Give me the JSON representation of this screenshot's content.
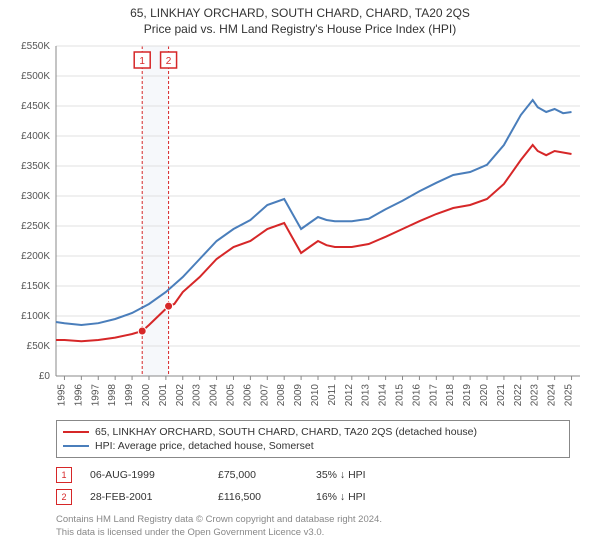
{
  "title": {
    "line1": "65, LINKHAY ORCHARD, SOUTH CHARD, CHARD, TA20 2QS",
    "line2": "Price paid vs. HM Land Registry's House Price Index (HPI)"
  },
  "chart": {
    "type": "line",
    "plot_bg": "#ffffff",
    "grid_color": "#e0e0e0",
    "axis_color": "#888888",
    "label_color": "#555555",
    "label_fontsize": 10,
    "x_years": [
      1995,
      1996,
      1997,
      1998,
      1999,
      2000,
      2001,
      2002,
      2003,
      2004,
      2005,
      2006,
      2007,
      2008,
      2009,
      2010,
      2011,
      2012,
      2013,
      2014,
      2015,
      2016,
      2017,
      2018,
      2019,
      2020,
      2021,
      2022,
      2023,
      2024,
      2025
    ],
    "xlim": [
      1994.5,
      2025.5
    ],
    "ylim": [
      0,
      550000
    ],
    "ytick_step": 50000,
    "y_format_prefix": "£",
    "y_format_suffix": "K",
    "y_format_div": 1000,
    "series": [
      {
        "id": "price_paid",
        "label": "65, LINKHAY ORCHARD, SOUTH CHARD, CHARD, TA20 2QS (detached house)",
        "color": "#d62728",
        "stroke_width": 2,
        "data": [
          [
            1994.5,
            60000
          ],
          [
            1995,
            60000
          ],
          [
            1996,
            58000
          ],
          [
            1997,
            60000
          ],
          [
            1998,
            64000
          ],
          [
            1999,
            70000
          ],
          [
            1999.6,
            75000
          ],
          [
            2000,
            85000
          ],
          [
            2001.16,
            116500
          ],
          [
            2001.5,
            120000
          ],
          [
            2002,
            140000
          ],
          [
            2003,
            165000
          ],
          [
            2004,
            195000
          ],
          [
            2005,
            215000
          ],
          [
            2006,
            225000
          ],
          [
            2007,
            245000
          ],
          [
            2008,
            255000
          ],
          [
            2008.5,
            230000
          ],
          [
            2009,
            205000
          ],
          [
            2009.5,
            215000
          ],
          [
            2010,
            225000
          ],
          [
            2010.5,
            218000
          ],
          [
            2011,
            215000
          ],
          [
            2012,
            215000
          ],
          [
            2013,
            220000
          ],
          [
            2014,
            232000
          ],
          [
            2015,
            245000
          ],
          [
            2016,
            258000
          ],
          [
            2017,
            270000
          ],
          [
            2018,
            280000
          ],
          [
            2019,
            285000
          ],
          [
            2020,
            295000
          ],
          [
            2021,
            320000
          ],
          [
            2022,
            360000
          ],
          [
            2022.7,
            385000
          ],
          [
            2023,
            375000
          ],
          [
            2023.5,
            368000
          ],
          [
            2024,
            375000
          ],
          [
            2025,
            370000
          ]
        ]
      },
      {
        "id": "hpi",
        "label": "HPI: Average price, detached house, Somerset",
        "color": "#4a7ebb",
        "stroke_width": 2,
        "data": [
          [
            1994.5,
            90000
          ],
          [
            1995,
            88000
          ],
          [
            1996,
            85000
          ],
          [
            1997,
            88000
          ],
          [
            1998,
            95000
          ],
          [
            1999,
            105000
          ],
          [
            2000,
            120000
          ],
          [
            2001,
            140000
          ],
          [
            2002,
            165000
          ],
          [
            2003,
            195000
          ],
          [
            2004,
            225000
          ],
          [
            2005,
            245000
          ],
          [
            2006,
            260000
          ],
          [
            2007,
            285000
          ],
          [
            2008,
            295000
          ],
          [
            2008.5,
            270000
          ],
          [
            2009,
            245000
          ],
          [
            2009.5,
            255000
          ],
          [
            2010,
            265000
          ],
          [
            2010.5,
            260000
          ],
          [
            2011,
            258000
          ],
          [
            2012,
            258000
          ],
          [
            2013,
            262000
          ],
          [
            2014,
            278000
          ],
          [
            2015,
            292000
          ],
          [
            2016,
            308000
          ],
          [
            2017,
            322000
          ],
          [
            2018,
            335000
          ],
          [
            2019,
            340000
          ],
          [
            2020,
            352000
          ],
          [
            2021,
            385000
          ],
          [
            2022,
            435000
          ],
          [
            2022.7,
            460000
          ],
          [
            2023,
            448000
          ],
          [
            2023.5,
            440000
          ],
          [
            2024,
            445000
          ],
          [
            2024.5,
            438000
          ],
          [
            2025,
            440000
          ]
        ]
      }
    ],
    "sale_markers": [
      {
        "n": 1,
        "x": 1999.6,
        "y": 75000,
        "color": "#d62728"
      },
      {
        "n": 2,
        "x": 2001.16,
        "y": 116500,
        "color": "#d62728"
      }
    ],
    "band": {
      "from": 1999.6,
      "to": 2001.16,
      "color": "#dbe5f1"
    },
    "marker_point_color": "#d62728",
    "marker_point_radius": 4
  },
  "legend": {
    "items": [
      {
        "color": "#d62728",
        "text": "65, LINKHAY ORCHARD, SOUTH CHARD, CHARD, TA20 2QS (detached house)"
      },
      {
        "color": "#4a7ebb",
        "text": "HPI: Average price, detached house, Somerset"
      }
    ]
  },
  "sales": [
    {
      "n": 1,
      "color": "#d62728",
      "date": "06-AUG-1999",
      "price": "£75,000",
      "diff": "35% ↓ HPI"
    },
    {
      "n": 2,
      "color": "#d62728",
      "date": "28-FEB-2001",
      "price": "£116,500",
      "diff": "16% ↓ HPI"
    }
  ],
  "credits": {
    "line1": "Contains HM Land Registry data © Crown copyright and database right 2024.",
    "line2": "This data is licensed under the Open Government Licence v3.0."
  }
}
